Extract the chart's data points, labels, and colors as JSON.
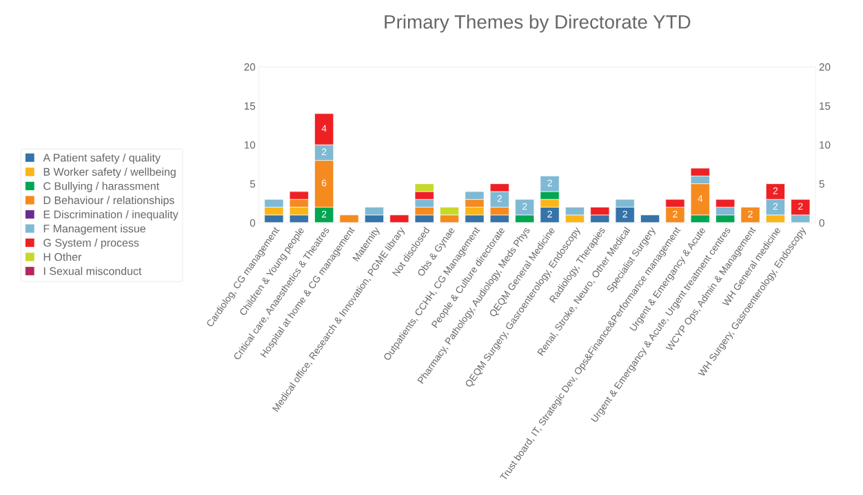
{
  "chart_data": {
    "type": "bar",
    "stacked": true,
    "title": "Primary Themes by Directorate YTD",
    "categories": [
      "Cardiolog, CG management",
      "Children & Young people",
      "Critical care, Anaesthetics & Theatres",
      "Hospital at home & CG management",
      "Maternity",
      "Medical office, Research & Innovation, PGME library",
      "Not disclosed",
      "Obs & Gynae",
      "Outpatients, CCHH, CG Management",
      "People & Culture directorate",
      "Pharmacy, Pathology, Audiology, Meds Phys",
      "QEQM General Medicine",
      "QEQM Surgery, Gasroenterology, Endoscopy",
      "Radiology, Therapies",
      "Renal, Stroke, Neuro, Other Medical",
      "Specialist Surgery",
      "Trust board, IT, Strategic Dev, Ops&Finance&Performance management",
      "Urgent & Emergancy & Acute",
      "Urgent & Emergancy & Acute, Urgent treatment centres",
      "WCYP Ops, Admin & Management",
      "WH General medicine",
      "WH Surgery, Gasroenterology, Endoscopy"
    ],
    "series": [
      {
        "name": "A Patient safety / quality",
        "color": "#3573a8",
        "values": [
          1,
          1,
          null,
          null,
          1,
          null,
          1,
          null,
          1,
          1,
          null,
          2,
          null,
          1,
          2,
          1,
          null,
          null,
          null,
          null,
          null,
          null
        ],
        "value_labels": [
          null,
          null,
          null,
          null,
          null,
          null,
          null,
          null,
          null,
          null,
          null,
          "2",
          null,
          null,
          "2",
          null,
          null,
          null,
          null,
          null,
          null,
          null
        ]
      },
      {
        "name": "B Worker safety / wellbeing",
        "color": "#fbb518",
        "values": [
          1,
          1,
          null,
          null,
          null,
          null,
          null,
          null,
          1,
          null,
          null,
          1,
          1,
          null,
          null,
          null,
          null,
          null,
          null,
          null,
          1,
          null
        ],
        "value_labels": [
          null,
          null,
          null,
          null,
          null,
          null,
          null,
          null,
          null,
          null,
          null,
          null,
          null,
          null,
          null,
          null,
          null,
          null,
          null,
          null,
          null,
          null
        ]
      },
      {
        "name": "C Bullying / harassment",
        "color": "#00a651",
        "values": [
          null,
          null,
          2,
          null,
          null,
          null,
          null,
          null,
          null,
          null,
          1,
          1,
          null,
          null,
          null,
          null,
          null,
          1,
          1,
          null,
          null,
          null
        ],
        "value_labels": [
          null,
          null,
          "2",
          null,
          null,
          null,
          null,
          null,
          null,
          null,
          null,
          null,
          null,
          null,
          null,
          null,
          null,
          null,
          null,
          null,
          null,
          null
        ]
      },
      {
        "name": "D Behaviour / relationships",
        "color": "#f58a1f",
        "values": [
          null,
          1,
          6,
          1,
          null,
          null,
          1,
          1,
          1,
          1,
          null,
          null,
          null,
          null,
          null,
          null,
          2,
          4,
          null,
          2,
          null,
          null
        ],
        "value_labels": [
          null,
          null,
          "6",
          null,
          null,
          null,
          null,
          null,
          null,
          null,
          null,
          null,
          null,
          null,
          null,
          null,
          "2",
          "4",
          null,
          "2",
          null,
          null
        ]
      },
      {
        "name": "E Discrimination / inequality",
        "color": "#6a2c91",
        "values": [
          null,
          null,
          null,
          null,
          null,
          null,
          null,
          null,
          null,
          null,
          null,
          null,
          null,
          null,
          null,
          null,
          null,
          null,
          null,
          null,
          null,
          null
        ],
        "value_labels": [
          null,
          null,
          null,
          null,
          null,
          null,
          null,
          null,
          null,
          null,
          null,
          null,
          null,
          null,
          null,
          null,
          null,
          null,
          null,
          null,
          null,
          null
        ]
      },
      {
        "name": "F Management issue",
        "color": "#7fb9d4",
        "values": [
          1,
          null,
          2,
          null,
          1,
          null,
          1,
          null,
          1,
          2,
          2,
          2,
          1,
          null,
          1,
          null,
          null,
          1,
          1,
          null,
          2,
          1
        ],
        "value_labels": [
          null,
          null,
          "2",
          null,
          null,
          null,
          null,
          null,
          null,
          "2",
          "2",
          "2",
          null,
          null,
          null,
          null,
          null,
          null,
          null,
          null,
          "2",
          null
        ]
      },
      {
        "name": "G System / process",
        "color": "#ee2024",
        "values": [
          null,
          1,
          4,
          null,
          null,
          1,
          1,
          null,
          null,
          1,
          null,
          null,
          null,
          1,
          null,
          null,
          1,
          1,
          1,
          null,
          2,
          2
        ],
        "value_labels": [
          null,
          null,
          "4",
          null,
          null,
          null,
          null,
          null,
          null,
          null,
          null,
          null,
          null,
          null,
          null,
          null,
          null,
          null,
          null,
          null,
          "2",
          "2"
        ]
      },
      {
        "name": "H Other",
        "color": "#c6d92b",
        "values": [
          null,
          null,
          null,
          null,
          null,
          null,
          1,
          1,
          null,
          null,
          null,
          null,
          null,
          null,
          null,
          null,
          null,
          null,
          null,
          null,
          null,
          null
        ],
        "value_labels": [
          null,
          null,
          null,
          null,
          null,
          null,
          null,
          null,
          null,
          null,
          null,
          null,
          null,
          null,
          null,
          null,
          null,
          null,
          null,
          null,
          null,
          null
        ]
      },
      {
        "name": "I Sexual misconduct",
        "color": "#b5275f",
        "values": [
          null,
          null,
          null,
          null,
          null,
          null,
          null,
          null,
          null,
          null,
          null,
          null,
          null,
          null,
          null,
          null,
          null,
          null,
          null,
          null,
          null,
          null
        ],
        "value_labels": [
          null,
          null,
          null,
          null,
          null,
          null,
          null,
          null,
          null,
          null,
          null,
          null,
          null,
          null,
          null,
          null,
          null,
          null,
          null,
          null,
          null,
          null
        ]
      }
    ],
    "ylim": [
      0,
      20
    ],
    "yticks": [
      0,
      5,
      10,
      15,
      20
    ],
    "y2lim": [
      0,
      20
    ],
    "y2ticks": [
      0,
      5,
      10,
      15,
      20
    ],
    "grid": false,
    "legend": "left"
  }
}
